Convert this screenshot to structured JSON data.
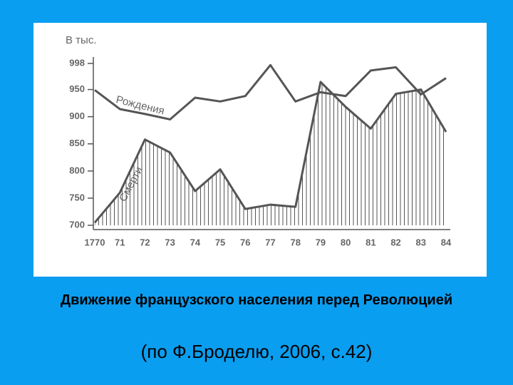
{
  "chart_data": {
    "type": "line",
    "title": "Движение французского населения перед Революцией",
    "subtitle": "(по Ф.Броделю, 2006, с.42)",
    "y_label": "В тыс.",
    "categories": [
      "1770",
      "71",
      "72",
      "73",
      "74",
      "75",
      "76",
      "77",
      "78",
      "79",
      "80",
      "81",
      "82",
      "83",
      "84"
    ],
    "series": [
      {
        "name": "Рождения",
        "color": "#555555",
        "values": [
          949,
          914,
          905,
          895,
          935,
          928,
          938,
          995,
          928,
          945,
          938,
          985,
          991,
          941,
          971
        ]
      },
      {
        "name": "Смерти",
        "color": "#555555",
        "values": [
          705,
          760,
          858,
          834,
          763,
          803,
          730,
          738,
          734,
          964,
          918,
          878,
          942,
          950,
          872
        ]
      }
    ],
    "ylim": [
      700,
      998
    ],
    "yticks": [
      700,
      750,
      800,
      850,
      900,
      950,
      998
    ]
  }
}
